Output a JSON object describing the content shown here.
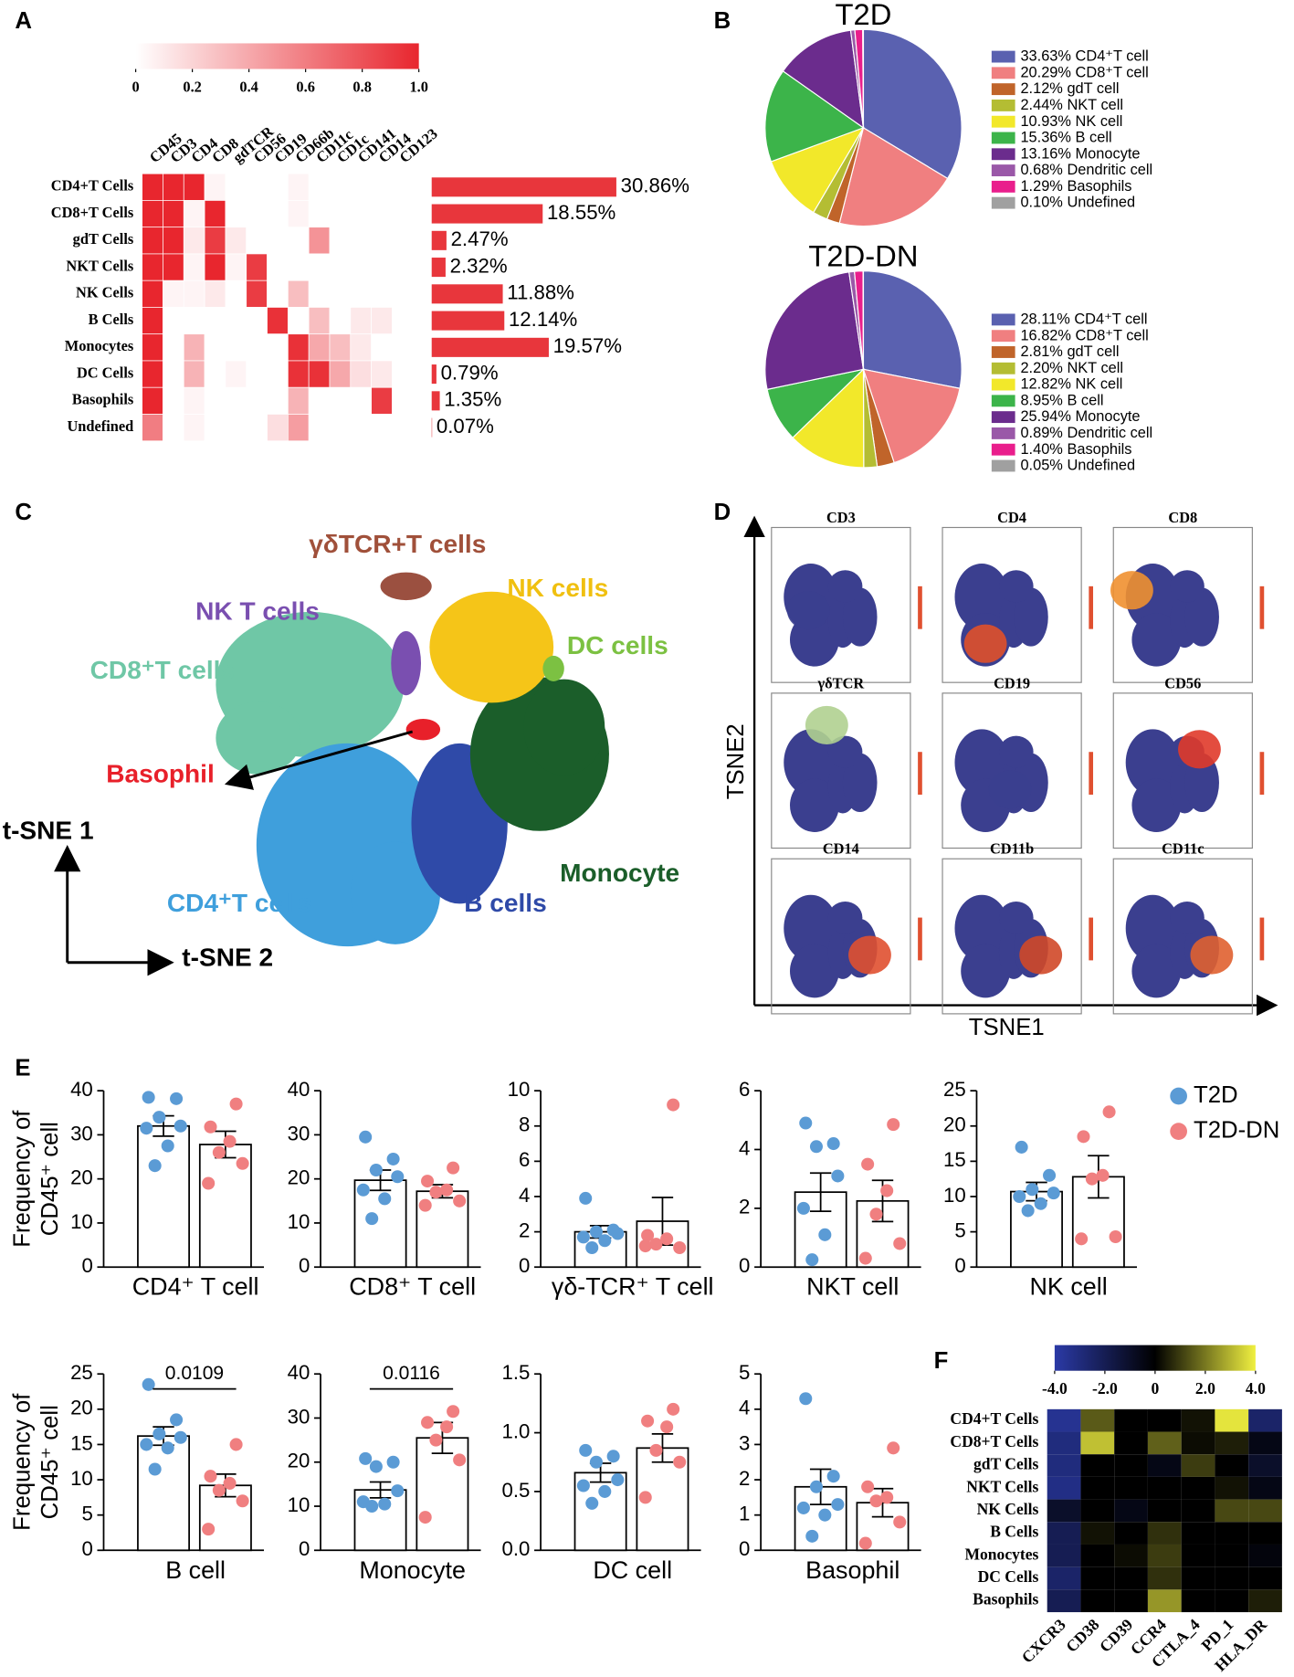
{
  "panel_labels": [
    "A",
    "B",
    "C",
    "D",
    "E",
    "F"
  ],
  "tsne": {
    "labels": [
      "γδTCR+T cells",
      "NK cells",
      "NK T cells",
      "DC cells",
      "CD8⁺T cells",
      "Basophil",
      "Monocyte",
      "CD4⁺T cells",
      "B cells"
    ],
    "axes": [
      "t-SNE 1",
      "t-SNE 2"
    ]
  },
  "tsne_markers": {
    "titles": [
      "CD3",
      "CD4",
      "CD8",
      "γδTCR",
      "CD19",
      "CD56",
      "CD14",
      "CD11b",
      "CD11c"
    ],
    "ylabel": "TSNE2",
    "xlabel": "TSNE1"
  },
  "chart_data": [
    {
      "type": "heatmap",
      "rows": [
        "CD4+T Cells",
        "CD8+T Cells",
        "gdT Cells",
        "NKT Cells",
        "NK Cells",
        "B Cells",
        "Monocytes",
        "DC Cells",
        "Basophils",
        "Undefined"
      ],
      "columns": [
        "CD45",
        "CD3",
        "CD4",
        "CD8",
        "gdTCR",
        "CD56",
        "CD19",
        "CD66b",
        "CD11c",
        "CD1c",
        "CD141",
        "CD14",
        "CD123"
      ],
      "values": [
        [
          1,
          1,
          1,
          0.05,
          0,
          0,
          0,
          0.05,
          0,
          0,
          0,
          0,
          0
        ],
        [
          1,
          1,
          0.05,
          1,
          0,
          0,
          0,
          0.05,
          0,
          0,
          0,
          0,
          0
        ],
        [
          1,
          1,
          0.1,
          0.9,
          0.1,
          0,
          0,
          0,
          0.5,
          0,
          0,
          0,
          0
        ],
        [
          1,
          1,
          0.05,
          1,
          0.05,
          0.9,
          0,
          0,
          0,
          0,
          0,
          0,
          0
        ],
        [
          1,
          0.05,
          0.05,
          0.1,
          0,
          0.9,
          0,
          0.3,
          0,
          0,
          0,
          0,
          0
        ],
        [
          1,
          0,
          0,
          0,
          0,
          0,
          0.95,
          0,
          0.3,
          0,
          0.1,
          0.1,
          0
        ],
        [
          1,
          0,
          0.35,
          0,
          0,
          0,
          0,
          0.95,
          0.4,
          0.3,
          0.1,
          0,
          0
        ],
        [
          1,
          0,
          0.35,
          0,
          0.05,
          0,
          0,
          0.95,
          0.95,
          0.4,
          0.15,
          0.1,
          0
        ],
        [
          1,
          0,
          0.05,
          0,
          0,
          0,
          0,
          0.35,
          0,
          0,
          0,
          0.9,
          0
        ],
        [
          0.6,
          0,
          0.05,
          0,
          0,
          0,
          0.15,
          0.45,
          0,
          0,
          0,
          0,
          0
        ]
      ],
      "colorscale": [
        "#ffffff",
        "#e8262e"
      ],
      "clim": [
        0,
        1
      ],
      "cticks": [
        0,
        0.2,
        0.4,
        0.6,
        0.8,
        {
          "value": 1,
          "label": "1.0"
        }
      ]
    },
    {
      "type": "hbar",
      "values": [
        30.86,
        18.55,
        2.47,
        2.32,
        11.88,
        12.14,
        19.57,
        0.79,
        1.35,
        0.07
      ],
      "value_labels": [
        "30.86%",
        "18.55%",
        "2.47%",
        "2.32%",
        "11.88%",
        "12.14%",
        "19.57%",
        "0.79%",
        "1.35%",
        "0.07%"
      ],
      "color": "#e8363c"
    },
    {
      "type": "pie",
      "title": "T2D",
      "categories": [
        "CD4⁺T cell",
        "CD8⁺T cell",
        "gdT cell",
        "NKT cell",
        "NK cell",
        "B cell",
        "Monocyte",
        "Dendritic cell",
        "Basophils",
        "Undefined"
      ],
      "values": [
        33.63,
        20.29,
        2.12,
        2.44,
        10.93,
        15.36,
        13.16,
        0.68,
        1.29,
        0.1
      ],
      "value_labels": [
        "33.63%",
        "20.29%",
        "2.12%",
        "2.44%",
        "10.93%",
        "15.36%",
        "13.16%",
        "0.68%",
        "1.29%",
        "0.10%"
      ],
      "colors": [
        "#5a61b0",
        "#f07f80",
        "#c0642a",
        "#b4bd33",
        "#f2e82a",
        "#3cb44a",
        "#6b2c8d",
        "#9a58a8",
        "#e91e8c",
        "#a0a0a0"
      ]
    },
    {
      "type": "pie",
      "title": "T2D-DN",
      "categories": [
        "CD4⁺T cell",
        "CD8⁺T cell",
        "gdT cell",
        "NKT cell",
        "NK cell",
        "B cell",
        "Monocyte",
        "Dendritic cell",
        "Basophils",
        "Undefined"
      ],
      "values": [
        28.11,
        16.82,
        2.81,
        2.2,
        12.82,
        8.95,
        25.94,
        0.89,
        1.4,
        0.05
      ],
      "value_labels": [
        "28.11%",
        "16.82%",
        "2.81%",
        "2.20%",
        "12.82%",
        "8.95%",
        "25.94%",
        "0.89%",
        "1.40%",
        "0.05%"
      ],
      "colors": [
        "#5a61b0",
        "#f07f80",
        "#c0642a",
        "#b4bd33",
        "#f2e82a",
        "#3cb44a",
        "#6b2c8d",
        "#9a58a8",
        "#e91e8c",
        "#a0a0a0"
      ]
    },
    {
      "type": "dotbar",
      "xlabel": "CD4⁺ T cell",
      "ylabel": [
        "Frequency of",
        "CD45⁺ cell"
      ],
      "ylim": [
        0,
        40
      ],
      "yticks": [
        0,
        10,
        20,
        30,
        40
      ],
      "series": [
        {
          "name": "T2D",
          "color": "#5b9bd5",
          "mean": 32,
          "sem": 2.3,
          "points": [
            38.5,
            38.2,
            34,
            32,
            31.5,
            27.5,
            23
          ]
        },
        {
          "name": "T2D-DN",
          "color": "#f07f80",
          "mean": 27.8,
          "sem": 3,
          "points": [
            37,
            31.8,
            28.5,
            26,
            23.5,
            19
          ]
        }
      ]
    },
    {
      "type": "dotbar",
      "xlabel": "CD8⁺ T cell",
      "ylim": [
        0,
        40
      ],
      "yticks": [
        0,
        10,
        20,
        30,
        40
      ],
      "series": [
        {
          "name": "T2D",
          "color": "#5b9bd5",
          "mean": 19.7,
          "sem": 2.3,
          "points": [
            29.5,
            24.5,
            22,
            20.5,
            17.5,
            15.5,
            11
          ]
        },
        {
          "name": "T2D-DN",
          "color": "#f07f80",
          "mean": 17.2,
          "sem": 1.5,
          "points": [
            22.5,
            19.5,
            17.5,
            17,
            15,
            14
          ]
        }
      ]
    },
    {
      "type": "dotbar",
      "xlabel": "γδ-TCR⁺ T cell",
      "ylim": [
        0,
        10
      ],
      "yticks": [
        0,
        2,
        4,
        6,
        8,
        10
      ],
      "series": [
        {
          "name": "T2D",
          "color": "#5b9bd5",
          "mean": 2.0,
          "sem": 0.35,
          "points": [
            3.9,
            2.1,
            2,
            1.9,
            1.7,
            1.5,
            1.1
          ]
        },
        {
          "name": "T2D-DN",
          "color": "#f07f80",
          "mean": 2.6,
          "sem": 1.35,
          "points": [
            9.2,
            1.8,
            1.6,
            1.3,
            1.1,
            1.2
          ]
        }
      ]
    },
    {
      "type": "dotbar",
      "xlabel": "NKT cell",
      "ylim": [
        0,
        6
      ],
      "yticks": [
        0,
        2,
        4,
        6
      ],
      "series": [
        {
          "name": "T2D",
          "color": "#5b9bd5",
          "mean": 2.55,
          "sem": 0.65,
          "points": [
            4.9,
            4.2,
            4.1,
            3.1,
            2,
            1.1,
            0.25
          ]
        },
        {
          "name": "T2D-DN",
          "color": "#f07f80",
          "mean": 2.25,
          "sem": 0.7,
          "points": [
            4.85,
            3.5,
            2.6,
            1.8,
            0.8,
            0.3
          ]
        }
      ]
    },
    {
      "type": "dotbar",
      "xlabel": "NK cell",
      "ylim": [
        0,
        25
      ],
      "yticks": [
        0,
        5,
        10,
        15,
        20,
        25
      ],
      "series": [
        {
          "name": "T2D",
          "color": "#5b9bd5",
          "mean": 10.7,
          "sem": 1.3,
          "points": [
            17,
            13,
            11,
            10.5,
            10,
            9,
            8
          ]
        },
        {
          "name": "T2D-DN",
          "color": "#f07f80",
          "mean": 12.8,
          "sem": 3,
          "points": [
            22,
            18.5,
            13,
            12.5,
            4.3,
            4
          ]
        }
      ]
    },
    {
      "type": "dotbar",
      "xlabel": "B cell",
      "ylabel": [
        "Frequency of",
        "CD45⁺ cell"
      ],
      "annotation": "0.0109",
      "ylim": [
        0,
        25
      ],
      "yticks": [
        0,
        5,
        10,
        15,
        20,
        25
      ],
      "series": [
        {
          "name": "T2D",
          "color": "#5b9bd5",
          "mean": 16.2,
          "sem": 1.3,
          "points": [
            23.5,
            18.5,
            16.5,
            16,
            15,
            14.5,
            11.5
          ]
        },
        {
          "name": "T2D-DN",
          "color": "#f07f80",
          "mean": 9.2,
          "sem": 1.6,
          "points": [
            15,
            10.5,
            9.5,
            8.5,
            7,
            3
          ]
        }
      ]
    },
    {
      "type": "dotbar",
      "xlabel": "Monocyte",
      "annotation": "0.0116",
      "ylim": [
        0,
        40
      ],
      "yticks": [
        0,
        10,
        20,
        30,
        40
      ],
      "series": [
        {
          "name": "T2D",
          "color": "#5b9bd5",
          "mean": 13.7,
          "sem": 1.8,
          "points": [
            20.8,
            20,
            19,
            13.5,
            11,
            10.5,
            10
          ]
        },
        {
          "name": "T2D-DN",
          "color": "#f07f80",
          "mean": 25.5,
          "sem": 3.5,
          "points": [
            31.5,
            29,
            28,
            25,
            20.5,
            7.5
          ]
        }
      ]
    },
    {
      "type": "dotbar",
      "xlabel": "DC cell",
      "ylim": [
        0,
        1.5
      ],
      "yticks": [
        {
          "value": 0,
          "label": "0.0"
        },
        0.5,
        {
          "value": 1,
          "label": "1.0"
        },
        1.5
      ],
      "series": [
        {
          "name": "T2D",
          "color": "#5b9bd5",
          "mean": 0.66,
          "sem": 0.08,
          "points": [
            0.85,
            0.8,
            0.75,
            0.6,
            0.55,
            0.5,
            0.4
          ]
        },
        {
          "name": "T2D-DN",
          "color": "#f07f80",
          "mean": 0.87,
          "sem": 0.12,
          "points": [
            1.2,
            1.1,
            1.05,
            0.85,
            0.75,
            0.45
          ]
        }
      ]
    },
    {
      "type": "dotbar",
      "xlabel": "Basophil",
      "ylim": [
        0,
        5
      ],
      "yticks": [
        0,
        1,
        2,
        3,
        4,
        5
      ],
      "series": [
        {
          "name": "T2D",
          "color": "#5b9bd5",
          "mean": 1.8,
          "sem": 0.5,
          "points": [
            4.3,
            2.1,
            1.8,
            1.3,
            1.2,
            1,
            0.4
          ]
        },
        {
          "name": "T2D-DN",
          "color": "#f07f80",
          "mean": 1.35,
          "sem": 0.4,
          "points": [
            2.9,
            1.8,
            1.5,
            1.4,
            0.8,
            0.2
          ]
        }
      ]
    },
    {
      "type": "heatmap",
      "rows": [
        "CD4+T Cells",
        "CD8+T Cells",
        "gdT Cells",
        "NKT Cells",
        "NK Cells",
        "B Cells",
        "Monocytes",
        "DC Cells",
        "Basophils"
      ],
      "columns": [
        "CXCR3",
        "CD38",
        "CD39",
        "CCR4",
        "CTLA_4",
        "PD_1",
        "HLA_DR"
      ],
      "values": [
        [
          -3.5,
          1.5,
          0,
          0,
          0.3,
          3.8,
          -2.5
        ],
        [
          -3,
          3.2,
          0,
          1.6,
          0.2,
          0.5,
          -0.5
        ],
        [
          -3,
          0,
          0,
          -0.5,
          1,
          0,
          -1
        ],
        [
          -3.2,
          0,
          0,
          0,
          0,
          0.3,
          -0.5
        ],
        [
          -1,
          0,
          -0.5,
          0,
          0,
          1.2,
          1.2
        ],
        [
          -2,
          0.3,
          0,
          0.8,
          0,
          0,
          0
        ],
        [
          -2,
          0,
          0.2,
          1,
          0,
          0,
          -0.3
        ],
        [
          -2.5,
          0,
          0,
          0.8,
          0,
          0,
          0
        ],
        [
          -2,
          0,
          0,
          2.5,
          0,
          0,
          0.5
        ]
      ],
      "colorscale": [
        "#2b3aa6",
        "#000000",
        "#f0f040"
      ],
      "clim": [
        -4,
        4
      ],
      "cticks": [
        {
          "value": -4,
          "label": "-4.0"
        },
        {
          "value": -2,
          "label": "-2.0"
        },
        0,
        {
          "value": 2,
          "label": "2.0"
        },
        {
          "value": 4,
          "label": "4.0"
        }
      ]
    }
  ]
}
